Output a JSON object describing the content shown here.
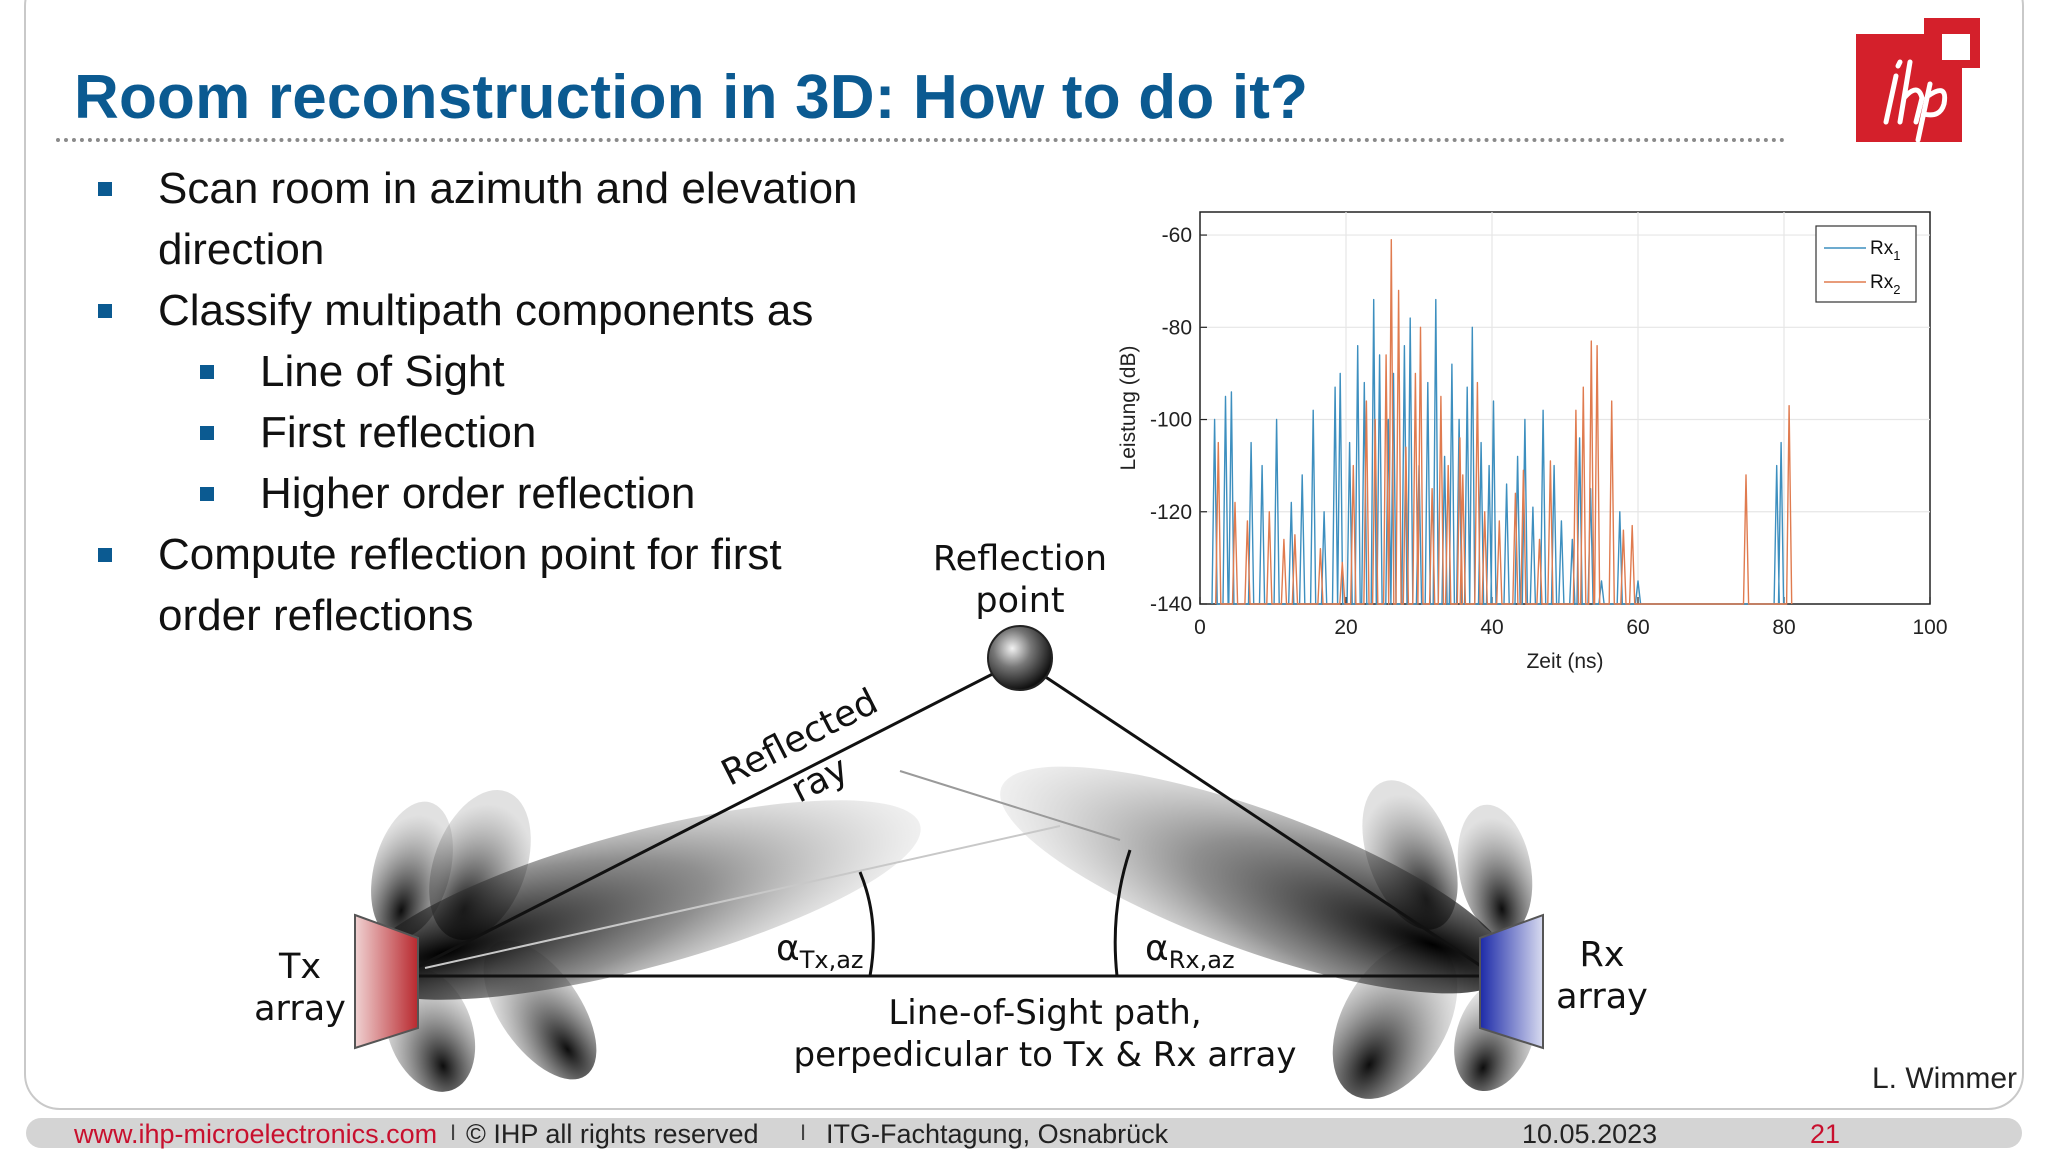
{
  "slide": {
    "title": "Room reconstruction in 3D: How to do it?",
    "author": "L. Wimmer",
    "bullets": [
      {
        "level": 1,
        "lines": [
          "Scan room in azimuth and elevation",
          "direction"
        ]
      },
      {
        "level": 1,
        "lines": [
          "Classify multipath components as"
        ]
      },
      {
        "level": 2,
        "lines": [
          "Line of Sight"
        ]
      },
      {
        "level": 2,
        "lines": [
          "First reflection"
        ]
      },
      {
        "level": 2,
        "lines": [
          "Higher order reflection"
        ]
      },
      {
        "level": 1,
        "lines": [
          "Compute reflection point for first",
          "order reflections"
        ]
      }
    ]
  },
  "logo": {
    "text": "ihp",
    "color": "#d4202b"
  },
  "diagram": {
    "reflection_point_label": [
      "Reflection",
      "point"
    ],
    "reflected_ray_label": [
      "Reflected",
      "ray"
    ],
    "tx_label": [
      "Tx",
      "array"
    ],
    "rx_label": [
      "Rx",
      "array"
    ],
    "alpha_tx": {
      "symbol": "α",
      "sub": "Tx,az"
    },
    "alpha_rx": {
      "symbol": "α",
      "sub": "Rx,az"
    },
    "los_label": [
      "Line-of-Sight path,",
      "perpedicular to Tx & Rx array"
    ],
    "tx_color": "#b8282e",
    "rx_color": "#1c2aa8"
  },
  "footer": {
    "website": "www.ihp-microelectronics.com",
    "sep": "I",
    "copyright": "© IHP all rights reserved",
    "event": "ITG-Fachtagung, Osnabrück",
    "date": "10.05.2023",
    "page": "21"
  },
  "chart_data": {
    "type": "line",
    "xlabel": "Zeit (ns)",
    "ylabel": "Leistung (dB)",
    "xlim": [
      0,
      100
    ],
    "ylim": [
      -140,
      -55
    ],
    "xticks": [
      0,
      20,
      40,
      60,
      80,
      100
    ],
    "yticks": [
      -60,
      -80,
      -100,
      -120,
      -140
    ],
    "grid": true,
    "legend_position": "top-right",
    "series": [
      {
        "name": "Rx",
        "sub": "1",
        "color": "#3d8fbf",
        "peaks": [
          [
            2.0,
            -100
          ],
          [
            3.5,
            -95
          ],
          [
            4.3,
            -94
          ],
          [
            7.0,
            -105
          ],
          [
            8.5,
            -110
          ],
          [
            10.5,
            -100
          ],
          [
            12.5,
            -118
          ],
          [
            14.0,
            -112
          ],
          [
            15.5,
            -98
          ],
          [
            17.0,
            -120
          ],
          [
            18.5,
            -93
          ],
          [
            19.2,
            -90
          ],
          [
            20.5,
            -105
          ],
          [
            21.6,
            -84
          ],
          [
            22.5,
            -92
          ],
          [
            23.8,
            -74
          ],
          [
            24.6,
            -86
          ],
          [
            25.8,
            -100
          ],
          [
            26.5,
            -90
          ],
          [
            28.0,
            -84
          ],
          [
            28.8,
            -78
          ],
          [
            30.0,
            -110
          ],
          [
            31.2,
            -92
          ],
          [
            32.3,
            -74
          ],
          [
            33.5,
            -108
          ],
          [
            34.5,
            -88
          ],
          [
            35.5,
            -100
          ],
          [
            36.6,
            -93
          ],
          [
            37.3,
            -80
          ],
          [
            38.5,
            -105
          ],
          [
            39.6,
            -110
          ],
          [
            40.2,
            -96
          ],
          [
            42.0,
            -114
          ],
          [
            43.5,
            -108
          ],
          [
            44.5,
            -100
          ],
          [
            45.6,
            -119
          ],
          [
            47.0,
            -98
          ],
          [
            48.5,
            -110
          ],
          [
            49.5,
            -122
          ],
          [
            51.0,
            -126
          ],
          [
            52.0,
            -104
          ],
          [
            53.5,
            -115
          ],
          [
            55.0,
            -135
          ],
          [
            57.5,
            -120
          ],
          [
            60.0,
            -135
          ],
          [
            79.0,
            -110
          ],
          [
            79.6,
            -105
          ]
        ]
      },
      {
        "name": "Rx",
        "sub": "2",
        "color": "#e07b4f",
        "peaks": [
          [
            2.5,
            -105
          ],
          [
            4.8,
            -118
          ],
          [
            6.5,
            -122
          ],
          [
            9.5,
            -120
          ],
          [
            11.5,
            -126
          ],
          [
            13.0,
            -125
          ],
          [
            16.5,
            -128
          ],
          [
            19.5,
            -131
          ],
          [
            21.0,
            -110
          ],
          [
            22.8,
            -96
          ],
          [
            24.0,
            -100
          ],
          [
            25.5,
            -86
          ],
          [
            26.2,
            -61
          ],
          [
            27.2,
            -72
          ],
          [
            28.2,
            -106
          ],
          [
            29.5,
            -90
          ],
          [
            30.2,
            -80
          ],
          [
            31.8,
            -115
          ],
          [
            33.0,
            -95
          ],
          [
            34.0,
            -110
          ],
          [
            35.6,
            -104
          ],
          [
            36.0,
            -112
          ],
          [
            38.0,
            -92
          ],
          [
            39.0,
            -120
          ],
          [
            41.0,
            -122
          ],
          [
            43.2,
            -116
          ],
          [
            44.3,
            -111
          ],
          [
            46.5,
            -126
          ],
          [
            48.0,
            -109
          ],
          [
            51.5,
            -98
          ],
          [
            52.5,
            -93
          ],
          [
            53.6,
            -83
          ],
          [
            54.4,
            -84
          ],
          [
            56.4,
            -96
          ],
          [
            58.0,
            -124
          ],
          [
            59.2,
            -123
          ],
          [
            74.8,
            -112
          ],
          [
            80.7,
            -97
          ]
        ]
      }
    ]
  }
}
